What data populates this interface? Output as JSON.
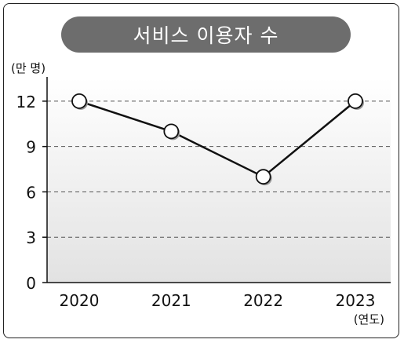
{
  "chart_data": {
    "type": "line",
    "title": "서비스 이용자 수",
    "y_unit": "(만 명)",
    "x_unit": "(연도)",
    "categories": [
      "2020",
      "2021",
      "2022",
      "2023"
    ],
    "series": [
      {
        "values": [
          12,
          10,
          7,
          12
        ]
      }
    ],
    "y_ticks": [
      0,
      3,
      6,
      9,
      12
    ],
    "ylim": [
      0,
      13.5
    ],
    "grid": true,
    "colors": {
      "line": "#111111",
      "marker_fill": "#ffffff",
      "grid": "#555555",
      "title_bg": "#6d6d6d"
    }
  }
}
